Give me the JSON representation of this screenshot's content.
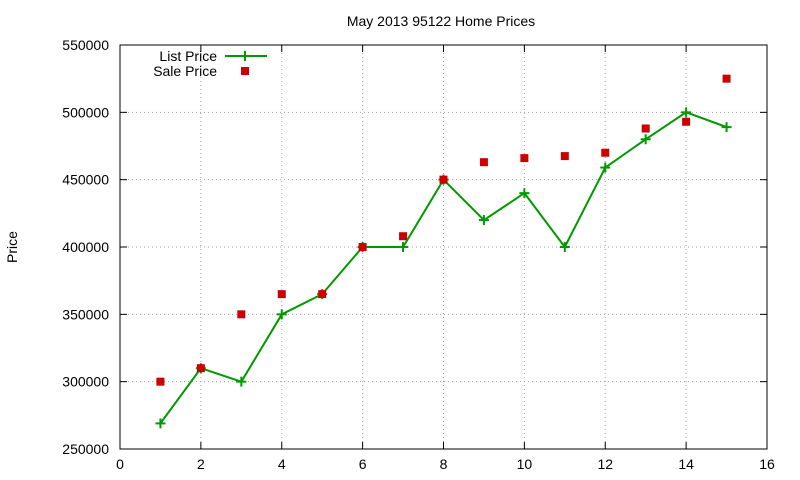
{
  "chart_data": {
    "type": "line",
    "title": "May 2013 95122 Home Prices",
    "xlabel": "",
    "ylabel": "Price",
    "xlim": [
      0,
      16
    ],
    "ylim": [
      250000,
      550000
    ],
    "x_ticks": [
      0,
      2,
      4,
      6,
      8,
      10,
      12,
      14,
      16
    ],
    "y_ticks": [
      250000,
      300000,
      350000,
      400000,
      450000,
      500000,
      550000
    ],
    "grid": true,
    "legend_position": "top-left",
    "series": [
      {
        "name": "List Price",
        "style": "line-with-plus-markers",
        "color": "#009900",
        "x": [
          1,
          2,
          3,
          4,
          5,
          6,
          7,
          8,
          9,
          10,
          11,
          12,
          13,
          14,
          15
        ],
        "values": [
          269000,
          310000,
          300000,
          350000,
          365000,
          400000,
          400000,
          450000,
          420000,
          440000,
          400000,
          459000,
          480000,
          500000,
          489000
        ]
      },
      {
        "name": "Sale Price",
        "style": "square-points",
        "color": "#cc0000",
        "x": [
          1,
          2,
          3,
          4,
          5,
          6,
          7,
          8,
          9,
          10,
          11,
          12,
          13,
          14,
          15
        ],
        "values": [
          300000,
          310000,
          350000,
          365000,
          365000,
          400000,
          408000,
          450000,
          463000,
          466000,
          467500,
          470000,
          488000,
          493000,
          525000
        ]
      }
    ]
  }
}
